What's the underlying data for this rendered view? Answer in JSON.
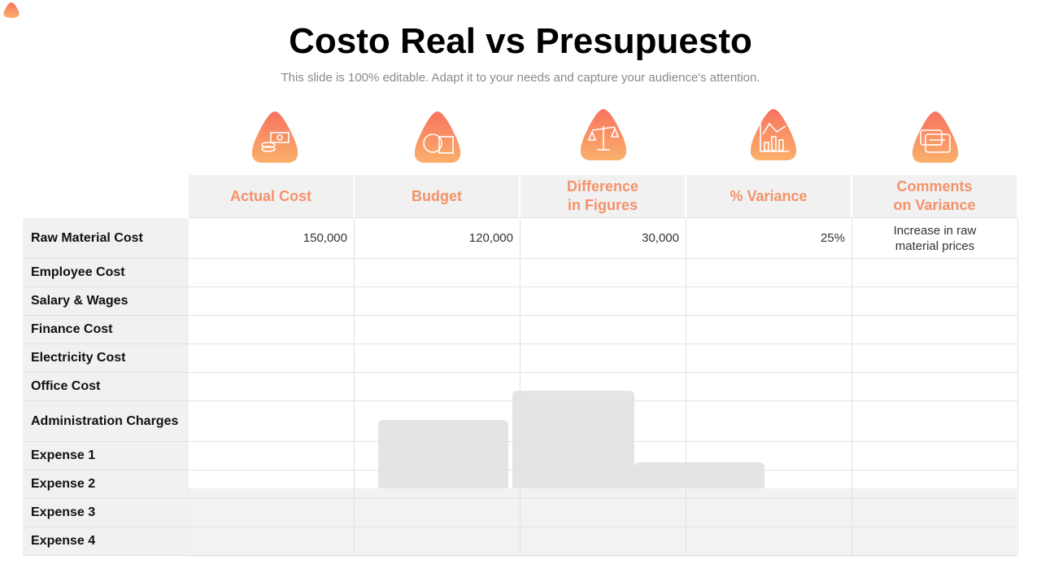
{
  "header": {
    "title": "Costo Real vs Presupuesto",
    "subtitle": "This slide is 100% editable. Adapt it to your needs and capture your audience's attention."
  },
  "table": {
    "columns": [
      "Actual Cost",
      "Budget",
      "Difference\nin Figures",
      "% Variance",
      "Comments\non Variance"
    ],
    "rows": [
      {
        "label": "Raw Material Cost",
        "cells": [
          "150,000",
          "120,000",
          "30,000",
          "25%",
          "Increase in raw\nmaterial prices"
        ]
      },
      {
        "label": "Employee Cost"
      },
      {
        "label": "Salary & Wages"
      },
      {
        "label": "Finance Cost"
      },
      {
        "label": "Electricity Cost"
      },
      {
        "label": "Office Cost"
      },
      {
        "label": "Administration Charges"
      },
      {
        "label": "Expense 1"
      },
      {
        "label": "Expense 2"
      },
      {
        "label": "Expense 3"
      },
      {
        "label": "Expense 4"
      }
    ]
  }
}
